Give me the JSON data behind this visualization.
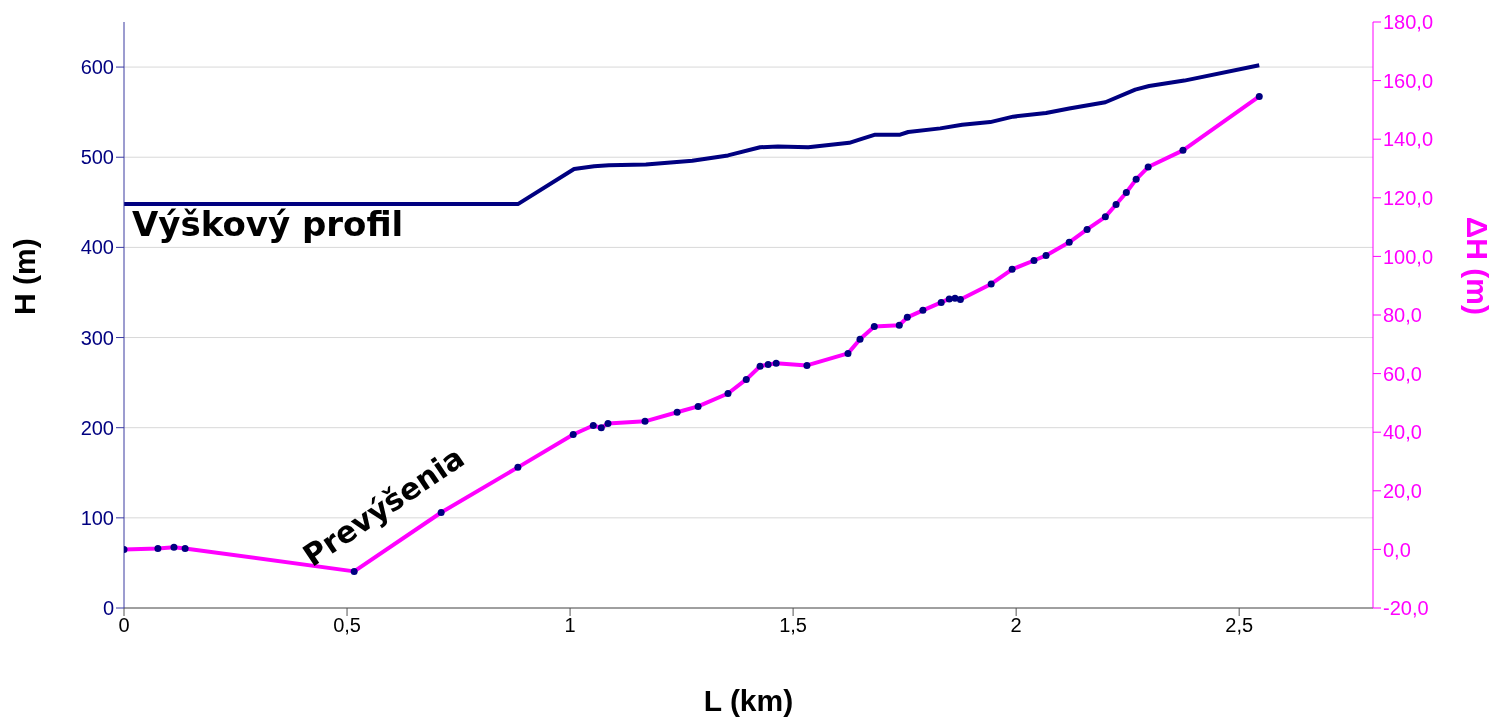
{
  "chart_data": {
    "type": "line",
    "xlabel": "L (km)",
    "ylabel": "H (m)",
    "y2label": "ΔH (m)",
    "xlim": [
      0,
      2.8
    ],
    "xticks": [
      0,
      {
        "value": 0.5,
        "label": "0,5"
      },
      1,
      {
        "value": 1.5,
        "label": "1,5"
      },
      2,
      {
        "value": 2.5,
        "label": "2,5"
      }
    ],
    "ylim": [
      0,
      650
    ],
    "yticks": [
      0,
      100,
      200,
      300,
      400,
      500,
      600
    ],
    "y2lim": [
      -20,
      180
    ],
    "y2ticks": [
      {
        "value": -20,
        "label": "-20,0"
      },
      {
        "value": 0,
        "label": "0,0"
      },
      {
        "value": 20,
        "label": "20,0"
      },
      {
        "value": 40,
        "label": "40,0"
      },
      {
        "value": 60,
        "label": "60,0"
      },
      {
        "value": 80,
        "label": "80,0"
      },
      {
        "value": 100,
        "label": "100,0"
      },
      {
        "value": 120,
        "label": "120,0"
      },
      {
        "value": 140,
        "label": "140,0"
      },
      {
        "value": 160,
        "label": "160,0"
      },
      {
        "value": 180,
        "label": "180,0"
      }
    ],
    "grid": "y",
    "legend": false,
    "series": [
      {
        "name": "Výškový profil",
        "color": "#000080",
        "marker": "none",
        "x": [
          0,
          0.883,
          1.009,
          1.054,
          1.087,
          1.17,
          1.274,
          1.354,
          1.426,
          1.466,
          1.534,
          1.626,
          1.652,
          1.684,
          1.74,
          1.758,
          1.83,
          1.879,
          1.942,
          1.993,
          2.067,
          2.119,
          2.2,
          2.267,
          2.298,
          2.377,
          2.545
        ],
        "values": [
          448,
          448,
          487,
          490,
          491,
          492,
          496,
          502,
          511,
          512,
          511,
          516,
          520,
          525,
          525,
          528,
          532,
          536,
          539,
          545,
          549,
          554,
          561,
          575,
          579,
          585,
          602
        ]
      },
      {
        "name": "Prevýšenia",
        "color": "#ff00ff",
        "marker": "circle",
        "axis": "y2",
        "x": [
          0,
          0.076,
          0.112,
          0.137,
          0.516,
          0.711,
          0.883,
          1.007,
          1.052,
          1.07,
          1.085,
          1.168,
          1.24,
          1.287,
          1.354,
          1.395,
          1.426,
          1.444,
          1.462,
          1.531,
          1.623,
          1.65,
          1.682,
          1.738,
          1.756,
          1.791,
          1.832,
          1.85,
          1.863,
          1.875,
          1.944,
          1.991,
          2.04,
          2.067,
          2.119,
          2.159,
          2.2,
          2.224,
          2.247,
          2.269,
          2.296,
          2.374,
          2.545
        ],
        "values": [
          0,
          0.3,
          0.7,
          0.3,
          -7.5,
          12.6,
          28,
          39.2,
          42.3,
          41.5,
          43,
          43.7,
          46.8,
          48.8,
          53.2,
          58,
          62.5,
          63.1,
          63.5,
          62.8,
          66.9,
          71.7,
          76.1,
          76.5,
          79.2,
          81.6,
          84.3,
          85.5,
          85.7,
          85.3,
          90.6,
          95.6,
          98.6,
          100.3,
          104.8,
          109.2,
          113.5,
          117.7,
          121.8,
          126.3,
          130.5,
          136.2,
          154.6
        ]
      }
    ]
  }
}
